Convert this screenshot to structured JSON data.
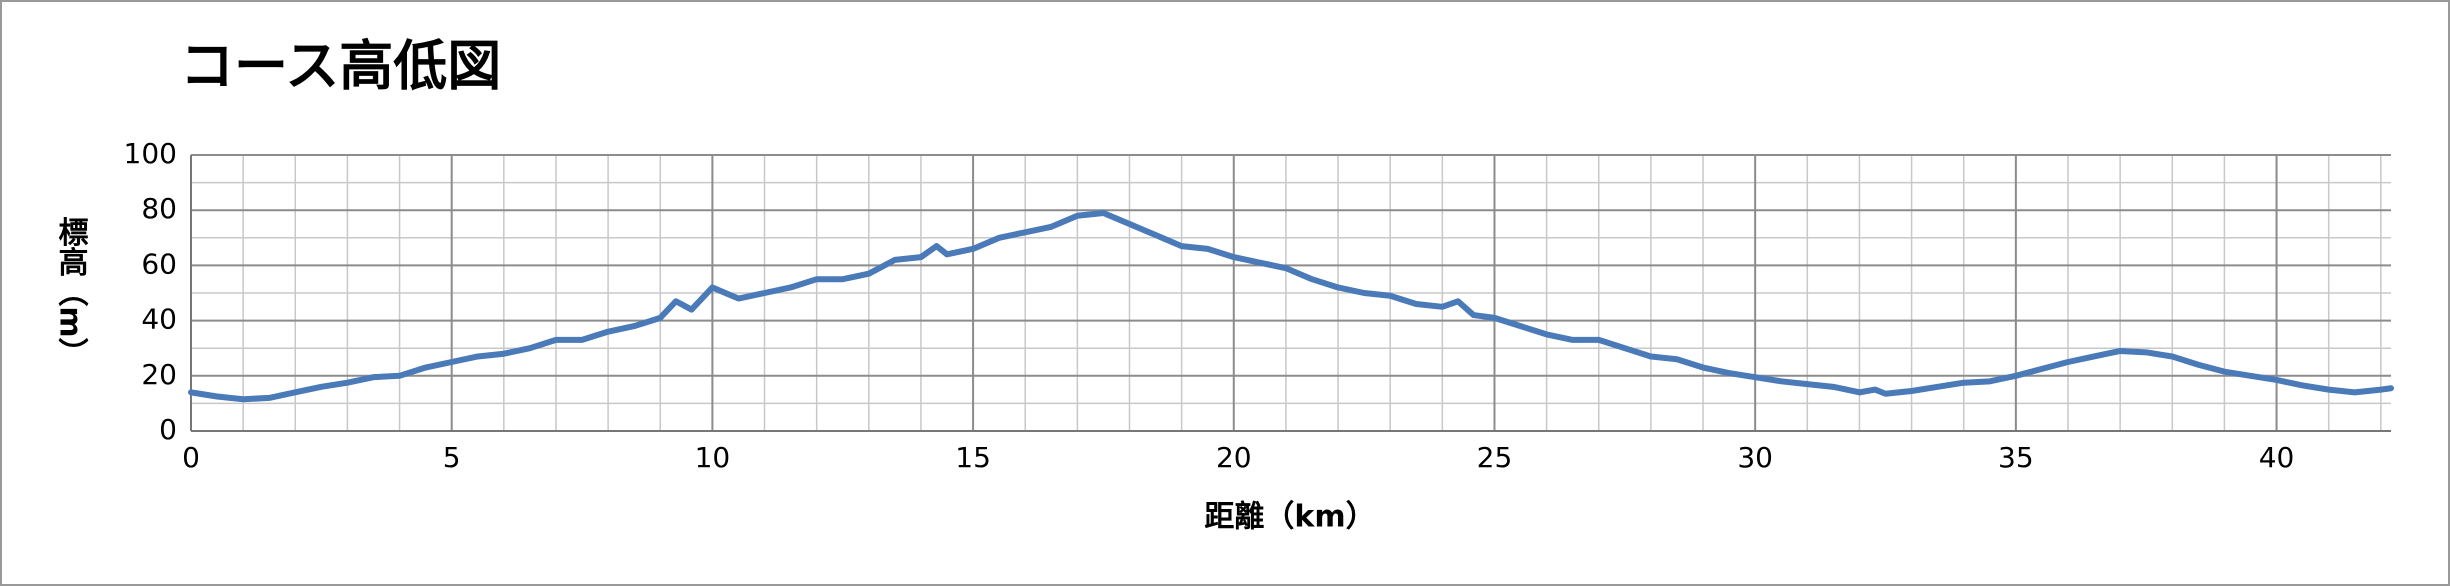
{
  "chart_data": {
    "type": "line",
    "title": "コース高低図",
    "x_label": "距離（km）",
    "y_label": "標高（m）",
    "x": [
      0,
      0.5,
      1,
      1.5,
      2,
      2.5,
      3,
      3.5,
      4,
      4.5,
      5,
      5.5,
      6,
      6.5,
      7,
      7.5,
      8,
      8.5,
      9,
      9.3,
      9.6,
      10,
      10.5,
      11,
      11.5,
      12,
      12.5,
      13,
      13.5,
      14,
      14.3,
      14.5,
      15,
      15.5,
      16,
      16.5,
      17,
      17.5,
      18,
      18.5,
      19,
      19.5,
      20,
      20.5,
      21,
      21.5,
      22,
      22.5,
      23,
      23.5,
      24,
      24.3,
      24.6,
      25,
      25.5,
      26,
      26.5,
      27,
      27.5,
      28,
      28.5,
      29,
      29.5,
      30,
      30.5,
      31,
      31.5,
      32,
      32.3,
      32.5,
      33,
      33.5,
      34,
      34.5,
      35,
      35.5,
      36,
      36.5,
      37,
      37.5,
      38,
      38.5,
      39,
      39.5,
      40,
      40.5,
      41,
      41.5,
      42,
      42.195
    ],
    "series": [
      {
        "name": "標高",
        "color": "#4a7ab8",
        "values": [
          14,
          12.5,
          11.5,
          12,
          14,
          16,
          17.5,
          19.5,
          20,
          23,
          25,
          27,
          28,
          30,
          33,
          33,
          36,
          38,
          41,
          47,
          44,
          52,
          48,
          50,
          52,
          55,
          55,
          57,
          62,
          63,
          67,
          64,
          66,
          70,
          72,
          74,
          78,
          79,
          75,
          71,
          67,
          66,
          63,
          61,
          59,
          55,
          52,
          50,
          49,
          46,
          45,
          47,
          42,
          41,
          38,
          35,
          33,
          33,
          30,
          27,
          26,
          23,
          21,
          19.5,
          18,
          17,
          16,
          14,
          15,
          13.5,
          14.5,
          16,
          17.5,
          18,
          20,
          22.5,
          25,
          27,
          29,
          28.5,
          27,
          24,
          21.5,
          20,
          18.5,
          16.5,
          15,
          14,
          15,
          15.5
        ]
      }
    ],
    "xlim": [
      0,
      42.195
    ],
    "xticks": [
      0,
      5,
      10,
      15,
      20,
      25,
      30,
      35,
      40
    ],
    "ylim": [
      0,
      100
    ],
    "yticks": [
      0,
      20,
      40,
      60,
      80,
      100
    ],
    "grid": true,
    "minor_grid": {
      "x": 1,
      "y": 10
    }
  }
}
